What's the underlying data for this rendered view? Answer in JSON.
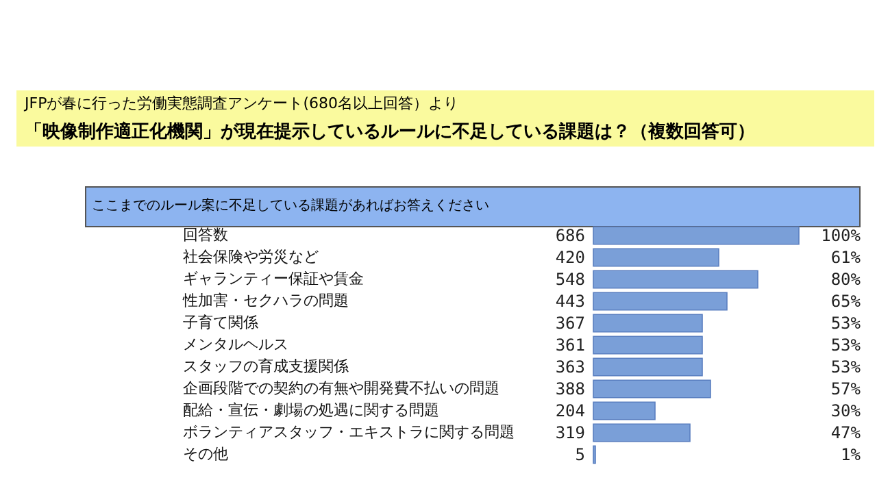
{
  "chart_data": {
    "type": "bar",
    "orientation": "horizontal",
    "subtitle": "JFPが春に行った労働実態調査アンケート(680名以上回答）より",
    "title": "「映像制作適正化機関」が現在提示しているルールに不足している課題は？（複数回答可）",
    "categories": [
      "回答数",
      "社会保険や労災など",
      "ギャランティー保証や賃金",
      "性加害・セクハラの問題",
      "子育て関係",
      "メンタルヘルス",
      "スタッフの育成支援関係",
      "企画段階での契約の有無や開発費不払いの問題",
      "配給・宣伝・劇場の処遇に関する問題",
      "ボランティアスタッフ・エキストラに関する問題",
      "その他"
    ],
    "values": [
      100,
      61,
      80,
      65,
      53,
      53,
      53,
      57,
      30,
      47,
      1
    ],
    "value_labels": [
      "100%",
      "61%",
      "80%",
      "65%",
      "53%",
      "53%",
      "53%",
      "57%",
      "30%",
      "47%",
      "1%"
    ],
    "color": "#7a9fd8",
    "annotations": [
      "ここまでのルール案に不足している課題があればお答えください",
      "686",
      "420",
      "548",
      "443",
      "367",
      "361",
      "363",
      "388",
      "204",
      "319",
      "5"
    ]
  }
}
